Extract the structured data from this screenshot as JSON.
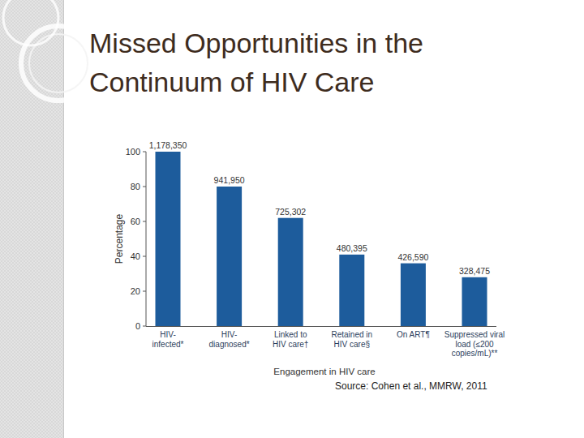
{
  "slide_title": [
    "Missed Opportunities in the",
    "Continuum of HIV Care"
  ],
  "source": "Source: Cohen et al., MMRW, 2011",
  "chart_data": {
    "type": "bar",
    "x_label": "Engagement in HIV care",
    "y_label": "Percentage",
    "categories": [
      "HIV-\ninfected*",
      "HIV-\ndiagnosed*",
      "Linked to\nHIV care†",
      "Retained in\nHIV care§",
      "On ART¶",
      "Suppressed viral\nload (≤200\ncopies/mL)**"
    ],
    "values": [
      100,
      80,
      62,
      41,
      36,
      28
    ],
    "count_labels": [
      "1,178,350",
      "941,950",
      "725,302",
      "480,395",
      "426,590",
      "328,475"
    ],
    "color": "#1d5c9c",
    "ylim": [
      0,
      100
    ],
    "yticks": [
      0,
      20,
      40,
      60,
      80,
      100
    ],
    "grid": false
  }
}
